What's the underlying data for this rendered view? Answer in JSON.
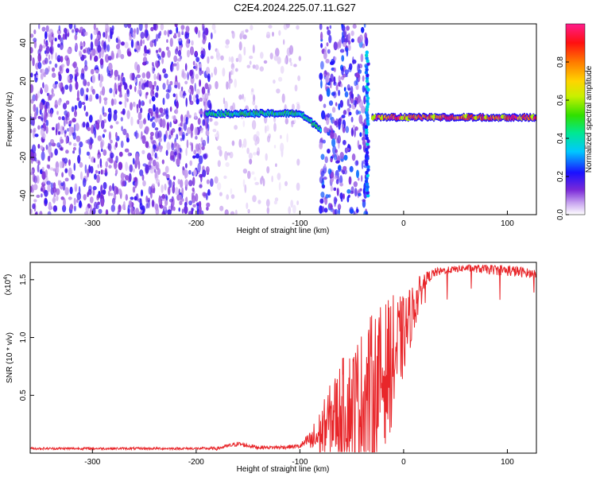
{
  "title": "C2E4.2024.225.07.11.G27",
  "colors": {
    "axis": "#000000",
    "snr_line": "#e8262a",
    "specgram_noise": "#7a2ad8",
    "specgram_light": "#c9a6f0"
  },
  "colorbar": {
    "label": "Normalized spectral amplitude",
    "ticks": [
      "0.0",
      "0.2",
      "0.4",
      "0.6",
      "0.8"
    ],
    "tick_values": [
      0.0,
      0.2,
      0.4,
      0.6,
      0.8
    ],
    "range": [
      0,
      1
    ],
    "colormap": "rainbow (white-violet-blue-cyan-green-yellow-orange-red-magenta)"
  },
  "chart_data": [
    {
      "type": "heatmap",
      "title": "C2E4.2024.225.07.11.G27",
      "xlabel": "Height of straight line (km)",
      "ylabel": "Frequency (Hz)",
      "xlim": [
        -360,
        128
      ],
      "ylim": [
        -50,
        50
      ],
      "x_ticks": [
        -300,
        -200,
        -100,
        0,
        100
      ],
      "x_tick_labels": [
        "-300",
        "-200",
        "-100",
        "0",
        "100"
      ],
      "y_ticks": [
        -40,
        -20,
        0,
        20,
        40
      ],
      "y_tick_labels": [
        "-40",
        "-20",
        "0",
        "20",
        "40"
      ],
      "features": [
        {
          "name": "broadband noise",
          "x_range": [
            -360,
            -185
          ],
          "f_range": [
            -50,
            50
          ],
          "amplitude": 0.15
        },
        {
          "name": "faint noise bands",
          "x_range": [
            -185,
            -100
          ],
          "f_range": [
            -50,
            50
          ],
          "amplitude": 0.05
        },
        {
          "name": "signal trace",
          "x_range": [
            -190,
            -100
          ],
          "f": 3,
          "amplitude": 0.45
        },
        {
          "name": "dipping trace",
          "x_range": [
            -100,
            -80
          ],
          "f_start": 3,
          "f_end": -5,
          "amplitude": 0.45
        },
        {
          "name": "noise burst",
          "x_range": [
            -80,
            -35
          ],
          "f_range": [
            -50,
            50
          ],
          "amplitude": 0.2
        },
        {
          "name": "vertical spike",
          "x": -35,
          "f_range": [
            -40,
            35
          ],
          "amplitude": 0.35
        },
        {
          "name": "strong carrier",
          "x_range": [
            -30,
            128
          ],
          "f": 1,
          "amplitude": 0.9
        }
      ]
    },
    {
      "type": "line",
      "xlabel": "Height of straight line (km)",
      "ylabel": "SNR (10 * v/v)",
      "y_multiplier_label": "(x10",
      "y_multiplier_exp": "4",
      "xlim": [
        -360,
        128
      ],
      "ylim": [
        0,
        1.65
      ],
      "x_ticks": [
        -300,
        -200,
        -100,
        0,
        100
      ],
      "x_tick_labels": [
        "-300",
        "-200",
        "-100",
        "0",
        "100"
      ],
      "y_ticks": [
        0.5,
        1.0,
        1.5
      ],
      "y_tick_labels": [
        "0.5",
        "1.0",
        "1.5"
      ],
      "series": [
        {
          "x": [
            -360,
            -300,
            -250,
            -200,
            -180,
            -160,
            -140,
            -120,
            -100,
            -90,
            -80,
            -70,
            -60,
            -50,
            -40,
            -30,
            -20,
            -10,
            0,
            10,
            20,
            30,
            40,
            60,
            80,
            100,
            110,
            128
          ],
          "y_mean": [
            0.04,
            0.04,
            0.04,
            0.04,
            0.04,
            0.08,
            0.05,
            0.05,
            0.06,
            0.12,
            0.22,
            0.38,
            0.48,
            0.55,
            0.62,
            0.72,
            0.82,
            0.95,
            1.1,
            1.32,
            1.5,
            1.56,
            1.58,
            1.6,
            1.59,
            1.58,
            1.57,
            1.55
          ],
          "y_spread": [
            0.01,
            0.01,
            0.01,
            0.01,
            0.015,
            0.02,
            0.015,
            0.015,
            0.02,
            0.07,
            0.14,
            0.2,
            0.28,
            0.32,
            0.38,
            0.42,
            0.4,
            0.35,
            0.22,
            0.14,
            0.06,
            0.04,
            0.03,
            0.03,
            0.04,
            0.05,
            0.05,
            0.03
          ]
        }
      ]
    }
  ]
}
